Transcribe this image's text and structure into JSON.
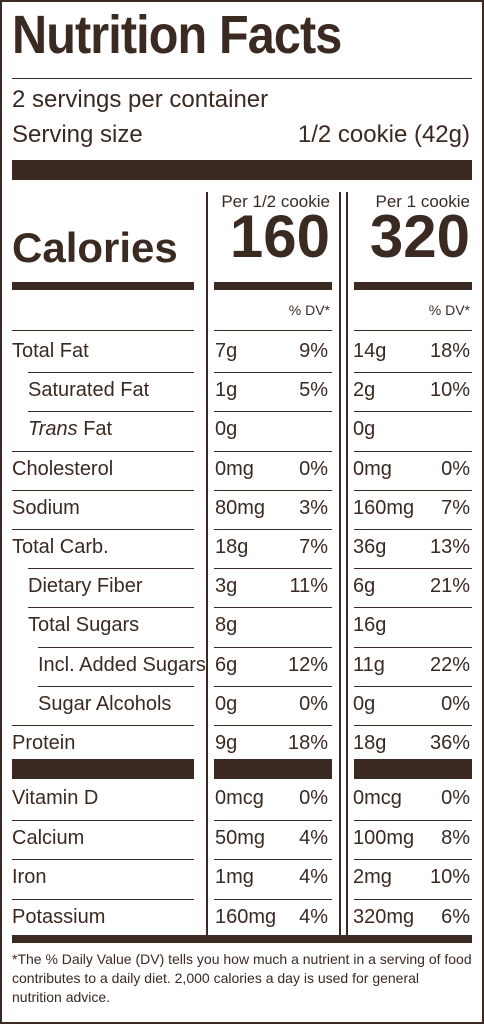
{
  "title": "Nutrition Facts",
  "servings_per_container": "2 servings per container",
  "serving_size_label": "Serving size",
  "serving_size_value": "1/2 cookie (42g)",
  "col1_head": "Per 1/2 cookie",
  "col2_head": "Per 1 cookie",
  "calories_label": "Calories",
  "calories_1": "160",
  "calories_2": "320",
  "dv_head": "% DV*",
  "nutrients": [
    {
      "label": "Total Fat",
      "a1": "7g",
      "p1": "9%",
      "a2": "14g",
      "p2": "18%"
    },
    {
      "label": "Saturated Fat",
      "a1": "1g",
      "p1": "5%",
      "a2": "2g",
      "p2": "10%"
    },
    {
      "label_italic": "Trans",
      "label_rest": " Fat",
      "a1": "0g",
      "p1": "",
      "a2": "0g",
      "p2": ""
    },
    {
      "label": "Cholesterol",
      "a1": "0mg",
      "p1": "0%",
      "a2": "0mg",
      "p2": "0%"
    },
    {
      "label": "Sodium",
      "a1": "80mg",
      "p1": "3%",
      "a2": "160mg",
      "p2": "7%"
    },
    {
      "label": "Total Carb.",
      "a1": "18g",
      "p1": "7%",
      "a2": "36g",
      "p2": "13%"
    },
    {
      "label": "Dietary Fiber",
      "a1": "3g",
      "p1": "11%",
      "a2": "6g",
      "p2": "21%"
    },
    {
      "label": "Total Sugars",
      "a1": "8g",
      "p1": "",
      "a2": "16g",
      "p2": ""
    },
    {
      "label": "Incl. Added Sugars",
      "a1": "6g",
      "p1": "12%",
      "a2": "11g",
      "p2": "22%"
    },
    {
      "label": "Sugar Alcohols",
      "a1": "0g",
      "p1": "0%",
      "a2": "0g",
      "p2": "0%"
    },
    {
      "label": "Protein",
      "a1": "9g",
      "p1": "18%",
      "a2": "18g",
      "p2": "36%"
    }
  ],
  "minerals": [
    {
      "label": "Vitamin D",
      "a1": "0mcg",
      "p1": "0%",
      "a2": "0mcg",
      "p2": "0%"
    },
    {
      "label": "Calcium",
      "a1": "50mg",
      "p1": "4%",
      "a2": "100mg",
      "p2": "8%"
    },
    {
      "label": "Iron",
      "a1": "1mg",
      "p1": "4%",
      "a2": "2mg",
      "p2": "10%"
    },
    {
      "label": "Potassium",
      "a1": "160mg",
      "p1": "4%",
      "a2": "320mg",
      "p2": "6%"
    }
  ],
  "footnote": "*The % Daily Value (DV) tells you how much a nutrient in a serving of food contributes to a daily diet. 2,000 calories a day is used for general nutrition advice.",
  "colors": {
    "ink": "#3a2a22"
  }
}
